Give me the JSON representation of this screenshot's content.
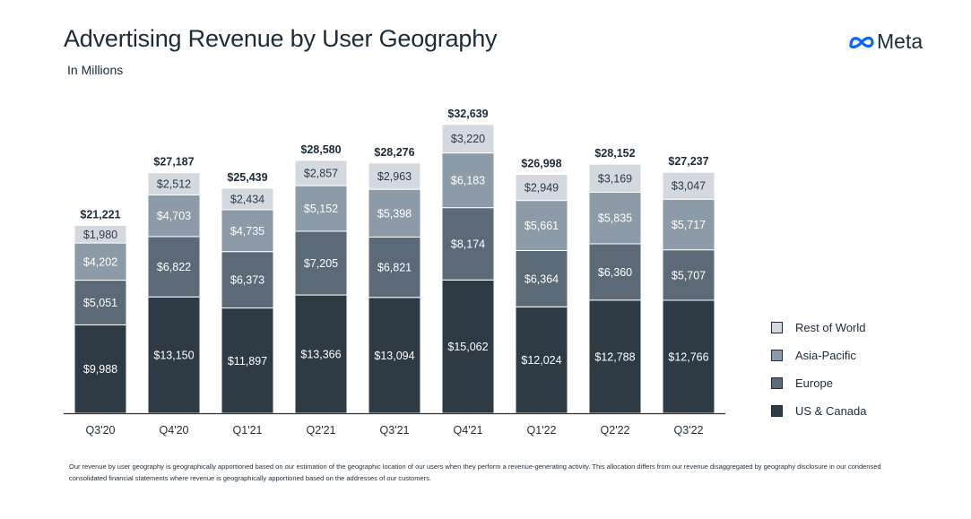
{
  "header": {
    "title": "Advertising Revenue by User Geography",
    "subtitle": "In Millions",
    "brand": "Meta"
  },
  "colors": {
    "us_canada": "#2e3b45",
    "europe": "#5c6a78",
    "asia_pacific": "#8d9aa7",
    "rest_of_world": "#d3d9df",
    "axis": "#333333"
  },
  "chart_data": {
    "type": "bar",
    "stacked": true,
    "title": "Advertising Revenue by User Geography",
    "subtitle": "In Millions",
    "categories": [
      "Q3'20",
      "Q4'20",
      "Q1'21",
      "Q2'21",
      "Q3'21",
      "Q4'21",
      "Q1'22",
      "Q2'22",
      "Q3'22"
    ],
    "series": [
      {
        "name": "US & Canada",
        "color": "#2e3b45",
        "values": [
          9988,
          13150,
          11897,
          13366,
          13094,
          15062,
          12024,
          12788,
          12766
        ],
        "labels": [
          "$9,988",
          "$13,150",
          "$11,897",
          "$13,366",
          "$13,094",
          "$15,062",
          "$12,024",
          "$12,788",
          "$12,766"
        ]
      },
      {
        "name": "Europe",
        "color": "#5c6a78",
        "values": [
          5051,
          6822,
          6373,
          7205,
          6821,
          8174,
          6364,
          6360,
          5707
        ],
        "labels": [
          "$5,051",
          "$6,822",
          "$6,373",
          "$7,205",
          "$6,821",
          "$8,174",
          "$6,364",
          "$6,360",
          "$5,707"
        ]
      },
      {
        "name": "Asia-Pacific",
        "color": "#8d9aa7",
        "values": [
          4202,
          4703,
          4735,
          5152,
          5398,
          6183,
          5661,
          5835,
          5717
        ],
        "labels": [
          "$4,202",
          "$4,703",
          "$4,735",
          "$5,152",
          "$5,398",
          "$6,183",
          "$5,661",
          "$5,835",
          "$5,717"
        ]
      },
      {
        "name": "Rest of World",
        "color": "#d3d9df",
        "values": [
          1980,
          2512,
          2434,
          2857,
          2963,
          3220,
          2949,
          3169,
          3047
        ],
        "labels": [
          "$1,980",
          "$2,512",
          "$2,434",
          "$2,857",
          "$2,963",
          "$3,220",
          "$2,949",
          "$3,169",
          "$3,047"
        ]
      }
    ],
    "totals": [
      21221,
      27187,
      25439,
      28580,
      28276,
      32639,
      26998,
      28152,
      27237
    ],
    "total_labels": [
      "$21,221",
      "$27,187",
      "$25,439",
      "$28,580",
      "$28,276",
      "$32,639",
      "$26,998",
      "$28,152",
      "$27,237"
    ],
    "legend_order": [
      "Rest of World",
      "Asia-Pacific",
      "Europe",
      "US & Canada"
    ],
    "legend_position": "right",
    "grid": false
  },
  "footnote": "Our revenue by user geography is geographically apportioned based on our estimation of the geographic location of our users when they perform a revenue-generating activity. This allocation differs from our revenue disaggregated by geography disclosure in our condensed consolidated financial statements where revenue is geographically apportioned based on the addresses of our customers."
}
